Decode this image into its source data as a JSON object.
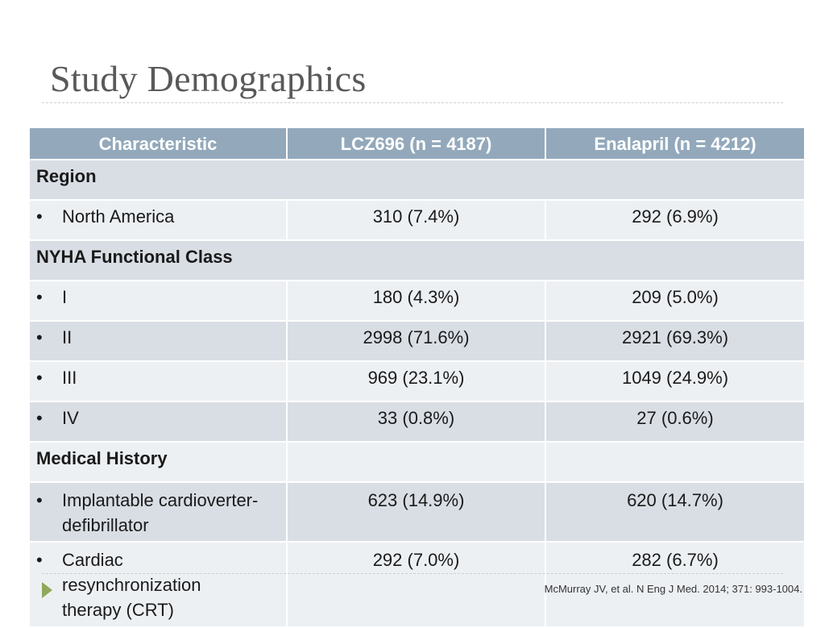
{
  "title": "Study Demographics",
  "colors": {
    "header_bg": "#93a9bb",
    "band_row": "#d9dee5",
    "plain_row": "#edf0f3",
    "accent_arrow": "#8fa85a"
  },
  "table": {
    "headers": [
      "Characteristic",
      "LCZ696 (n = 4187)",
      "Enalapril (n = 4212)"
    ],
    "sections": {
      "region": "Region",
      "nyha": "NYHA Functional Class",
      "history": "Medical History"
    },
    "bullet": "•",
    "rows": {
      "north_america": {
        "label": "North America",
        "lcz": "310 (7.4%)",
        "enal": "292 (6.9%)"
      },
      "nyha_i": {
        "label": "I",
        "lcz": "180 (4.3%)",
        "enal": "209 (5.0%)"
      },
      "nyha_ii": {
        "label": "II",
        "lcz": "2998 (71.6%)",
        "enal": "2921 (69.3%)"
      },
      "nyha_iii": {
        "label": "III",
        "lcz": "969 (23.1%)",
        "enal": "1049 (24.9%)"
      },
      "nyha_iv": {
        "label": "IV",
        "lcz": "33 (0.8%)",
        "enal": "27 (0.6%)"
      },
      "icd": {
        "label": "Implantable cardioverter-defibrillator",
        "lcz": "623 (14.9%)",
        "enal": "620 (14.7%)"
      },
      "crt": {
        "label": "Cardiac resynchronization therapy (CRT)",
        "lcz": "292 (7.0%)",
        "enal": "282 (6.7%)"
      }
    }
  },
  "citation": "McMurray JV, et al. N Eng J Med. 2014; 371: 993-1004."
}
